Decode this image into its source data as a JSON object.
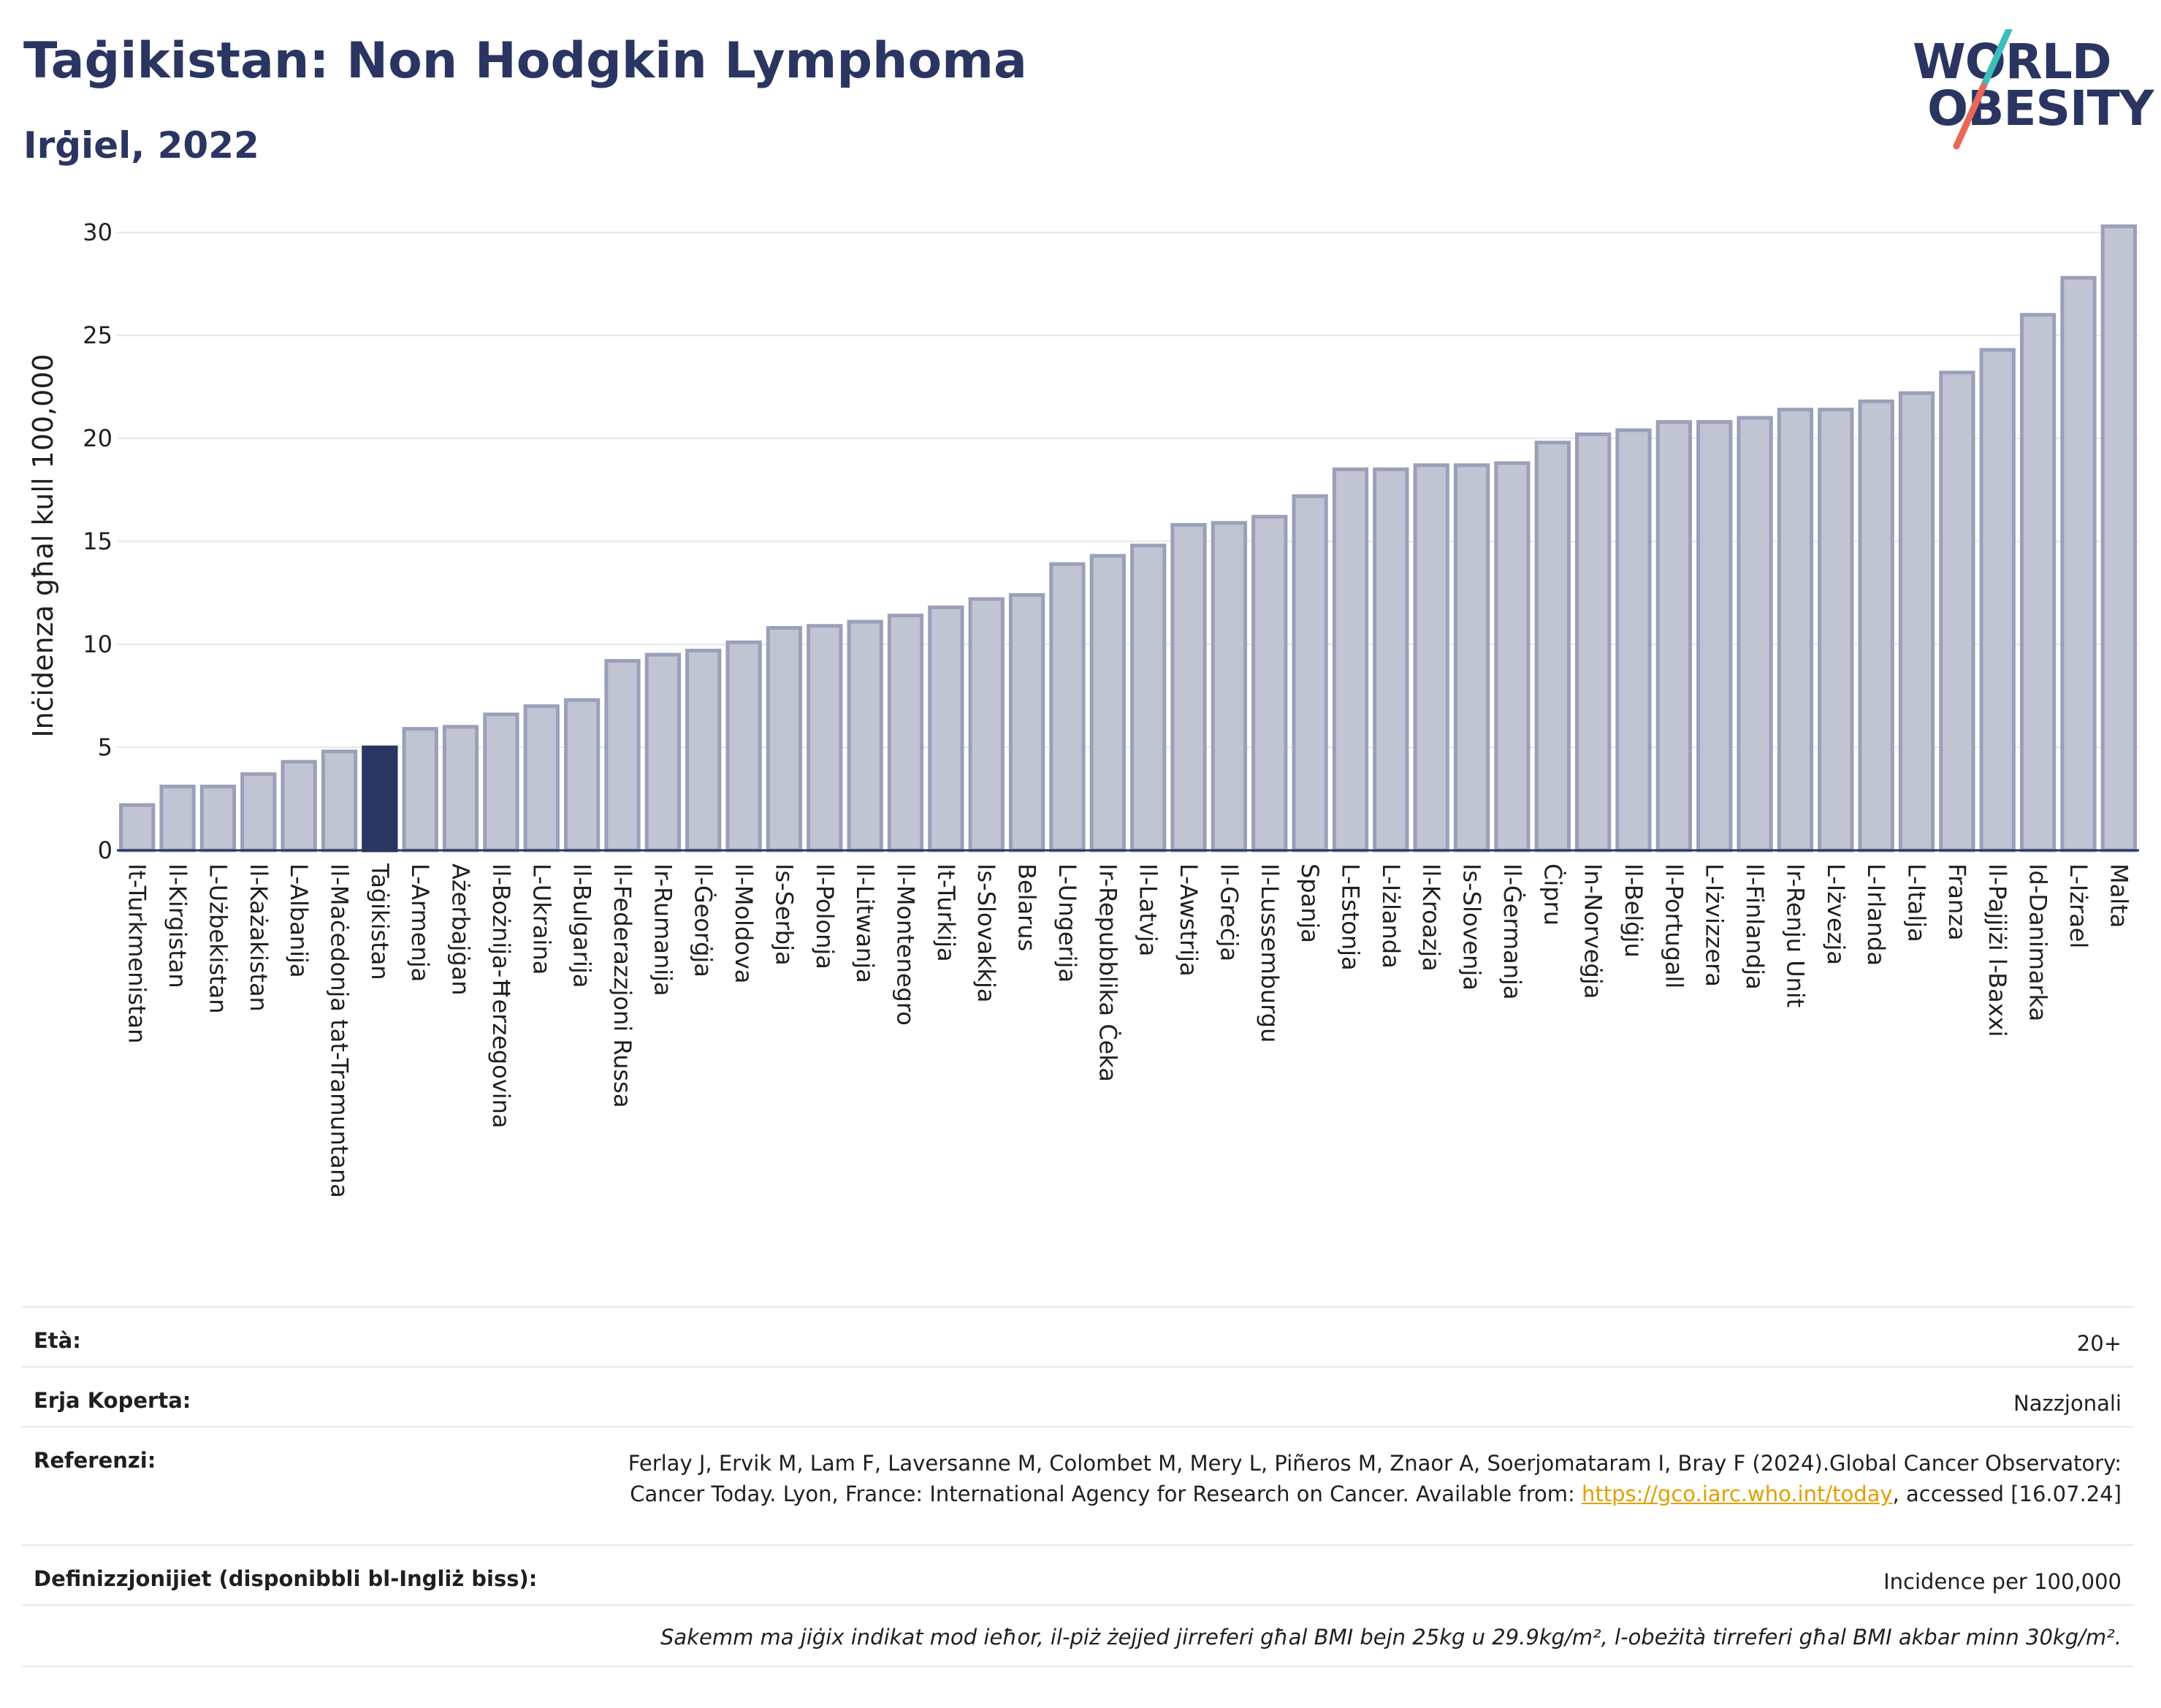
{
  "header": {
    "title": "Taġikistan: Non Hodgkin Lymphoma",
    "subtitle": "Irġiel, 2022"
  },
  "logo": {
    "line1": "WORLD",
    "line2": "OBESITY",
    "colors": {
      "navy": "#2b3561",
      "teal": "#3dbdbd",
      "coral": "#e8685a"
    }
  },
  "chart_data": {
    "type": "bar",
    "ylabel": "Inċidenza għal kull 100,000",
    "ylim": [
      0,
      31
    ],
    "yticks": [
      0,
      5,
      10,
      15,
      20,
      25,
      30
    ],
    "grid": true,
    "highlight": "Taġikistan",
    "colors": {
      "bar": "#c1c5d3",
      "bar_border": "#9aa0b8",
      "highlight": "#2b3561"
    },
    "categories": [
      "It-Turkmenistan",
      "Il-Kirgistan",
      "L-Użbekistan",
      "Il-Każakistan",
      "L-Albanija",
      "Il-Maċedonja tat-Tramuntana",
      "Taġikistan",
      "L-Armenja",
      "Ażerbajġan",
      "Il-Bożnija-Ħerzegovina",
      "L-Ukraina",
      "Il-Bulgarija",
      "Il-Federazzjoni Russa",
      "Ir-Rumanija",
      "Il-Ġeorġja",
      "Il-Moldova",
      "Is-Serbja",
      "Il-Polonja",
      "Il-Litwanja",
      "Il-Montenegro",
      "It-Turkija",
      "Is-Slovakkja",
      "Belarus",
      "L-Ungerija",
      "Ir-Repubblika Ċeka",
      "Il-Latvja",
      "L-Awstrija",
      "Il-Greċja",
      "Il-Lussemburgu",
      "Spanja",
      "L-Estonja",
      "L-Iżlanda",
      "Il-Kroazja",
      "Is-Slovenja",
      "Il-Ġermanja",
      "Ċipru",
      "In-Norveġja",
      "Il-Belġju",
      "Il-Portugall",
      "L-Iżvizzera",
      "Il-Finlandja",
      "Ir-Renju Unit",
      "L-Iżvezja",
      "L-Irlanda",
      "L-Italja",
      "Franza",
      "Il-Pajjiżi l-Baxxi",
      "Id-Danimarka",
      "L-Iżrael",
      "Malta"
    ],
    "values": [
      2.2,
      3.1,
      3.1,
      3.7,
      4.3,
      4.8,
      5.0,
      5.9,
      6.0,
      6.6,
      7.0,
      7.3,
      9.2,
      9.5,
      9.7,
      10.1,
      10.8,
      10.9,
      11.1,
      11.4,
      11.8,
      12.2,
      12.4,
      13.9,
      14.3,
      14.8,
      15.8,
      15.9,
      16.2,
      17.2,
      18.5,
      18.5,
      18.7,
      18.7,
      18.8,
      19.8,
      20.2,
      20.4,
      20.8,
      20.8,
      21.0,
      21.4,
      21.4,
      21.8,
      22.2,
      23.2,
      24.3,
      26.0,
      27.8,
      30.3
    ]
  },
  "meta": {
    "age_label": "Età:",
    "age_value": "20+",
    "area_label": "Erja Koperta:",
    "area_value": "Nazzjonali",
    "ref_label": "Referenzi:",
    "ref_text_1": "Ferlay J, Ervik M, Lam F, Laversanne M, Colombet M, Mery L, Piñeros M, Znaor A, Soerjomataram I, Bray F (2024).Global Cancer Observatory: Cancer Today. Lyon, France: International Agency for Research on Cancer. Available from: ",
    "ref_link": "https://gco.iarc.who.int/today",
    "ref_text_2": ", accessed [16.07.24]",
    "def_label": "Definizzjonijiet (disponibbli bl-Ingliż biss):",
    "def_value": "Incidence per 100,000",
    "footnote": "Sakemm ma jiġix indikat mod ieħor, il-piż żejjed jirreferi għal BMI bejn 25kg u 29.9kg/m², l-obeżità tirreferi għal BMI akbar minn 30kg/m²."
  }
}
